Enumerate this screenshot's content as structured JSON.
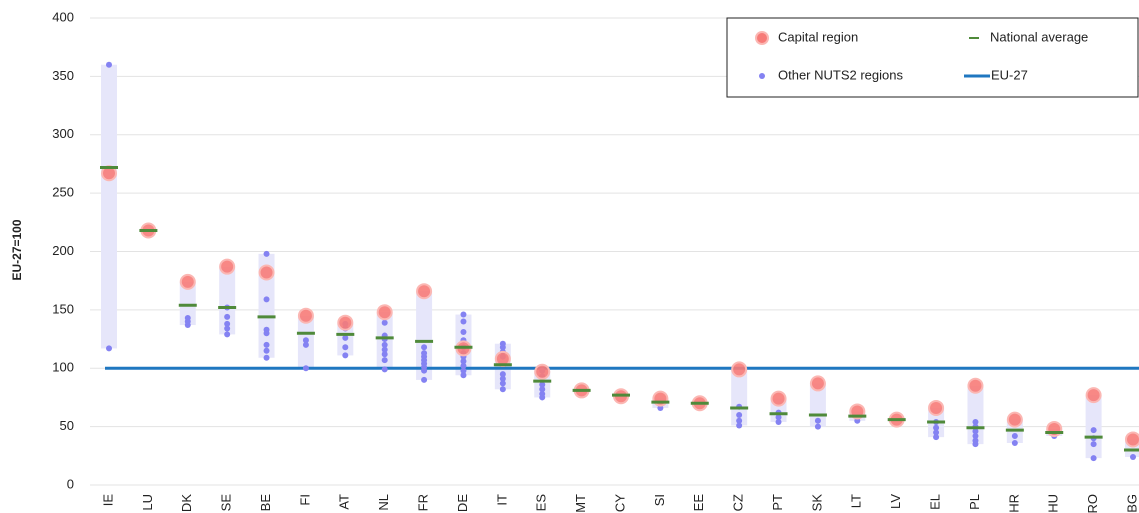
{
  "chart_data": {
    "type": "range-dot",
    "y_label": "EU-27=100",
    "categories": [
      "IE",
      "LU",
      "DK",
      "SE",
      "BE",
      "FI",
      "AT",
      "NL",
      "FR",
      "DE",
      "IT",
      "ES",
      "MT",
      "CY",
      "SI",
      "EE",
      "CZ",
      "PT",
      "SK",
      "LT",
      "LV",
      "EL",
      "PL",
      "HR",
      "HU",
      "RO",
      "BG"
    ],
    "ylim": [
      0,
      400
    ],
    "yticks": [
      0,
      50,
      100,
      150,
      200,
      250,
      300,
      350,
      400
    ],
    "grid": true,
    "legend": "top-right",
    "band_color": "#e6e6fa",
    "series": [
      {
        "name": "Capital region",
        "color": "#f77b78",
        "values": [
          267,
          218,
          174,
          187,
          182,
          145,
          139,
          148,
          166,
          117,
          108,
          97,
          81,
          76,
          74,
          70,
          99,
          74,
          87,
          63,
          56,
          66,
          85,
          56,
          48,
          77,
          39
        ]
      },
      {
        "name": "National average",
        "color": "#4f8a3a",
        "values": [
          272,
          218,
          154,
          152,
          144,
          130,
          129,
          126,
          123,
          118,
          103,
          89,
          81,
          77,
          71,
          70,
          66,
          61,
          60,
          59,
          56,
          54,
          49,
          47,
          45,
          41,
          30
        ]
      },
      {
        "name": "Other NUTS2 regions",
        "color": "#8482f2",
        "values": [
          [
            360,
            117
          ],
          [],
          [
            143,
            140,
            137
          ],
          [
            152,
            144,
            138,
            134,
            129
          ],
          [
            198,
            159,
            133,
            130,
            120,
            115,
            109
          ],
          [
            124,
            120,
            100
          ],
          [
            138,
            134,
            126,
            118,
            111
          ],
          [
            139,
            128,
            125,
            120,
            116,
            112,
            107,
            99
          ],
          [
            118,
            113,
            110,
            107,
            104,
            101,
            98,
            90
          ],
          [
            146,
            140,
            131,
            124,
            118,
            113,
            110,
            106,
            102,
            98,
            94
          ],
          [
            121,
            118,
            114,
            110,
            95,
            91,
            87,
            82
          ],
          [
            98,
            93,
            86,
            82,
            78,
            75
          ],
          [],
          [],
          [
            66
          ],
          [],
          [
            67,
            60,
            55,
            51
          ],
          [
            62,
            58,
            54
          ],
          [
            55,
            50
          ],
          [
            55
          ],
          [],
          [
            54,
            49,
            45,
            41
          ],
          [
            54,
            50,
            46,
            42,
            38,
            35
          ],
          [
            42,
            36
          ],
          [
            42
          ],
          [
            47,
            40,
            35,
            23
          ],
          [
            24
          ]
        ]
      },
      {
        "name": "EU-27",
        "color": "#1f77c0",
        "value": 100
      }
    ]
  }
}
